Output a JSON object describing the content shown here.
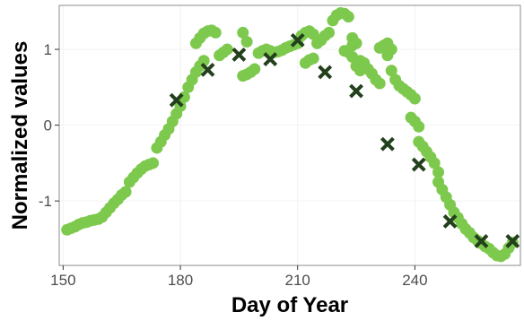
{
  "colors": {
    "dots": "#7dc94e",
    "markers": "#23401c",
    "panel_border": "#8c8c8c",
    "grid": "#f2f2f2"
  },
  "chart_data": {
    "type": "scatter",
    "title": "",
    "xlabel": "Day of Year",
    "ylabel": "Normalized values",
    "xlim": [
      149,
      267
    ],
    "ylim": [
      -1.85,
      1.58
    ],
    "x_ticks": [
      150,
      180,
      210,
      240
    ],
    "y_ticks": [
      -1,
      0,
      1
    ],
    "x_tick_labels": [
      "150",
      "180",
      "210",
      "240"
    ],
    "y_tick_labels": [
      "-1",
      "0",
      "1"
    ],
    "grid": false,
    "legend": "none",
    "series": [
      {
        "marker": "circle",
        "color": "#7dc94e",
        "points": [
          [
            151,
            -1.38
          ],
          [
            152,
            -1.36
          ],
          [
            153,
            -1.34
          ],
          [
            154,
            -1.31
          ],
          [
            155,
            -1.29
          ],
          [
            156,
            -1.28
          ],
          [
            157,
            -1.26
          ],
          [
            158,
            -1.25
          ],
          [
            159,
            -1.24
          ],
          [
            160,
            -1.21
          ],
          [
            161,
            -1.15
          ],
          [
            162,
            -1.09
          ],
          [
            163,
            -1.03
          ],
          [
            164,
            -0.98
          ],
          [
            165,
            -0.92
          ],
          [
            166,
            -0.88
          ],
          [
            167,
            -0.75
          ],
          [
            168,
            -0.69
          ],
          [
            169,
            -0.63
          ],
          [
            170,
            -0.58
          ],
          [
            171,
            -0.54
          ],
          [
            172,
            -0.52
          ],
          [
            173,
            -0.5
          ],
          [
            174,
            -0.3
          ],
          [
            175,
            -0.22
          ],
          [
            176,
            -0.13
          ],
          [
            177,
            -0.05
          ],
          [
            178,
            0.05
          ],
          [
            179,
            0.15
          ],
          [
            180,
            0.25
          ],
          [
            181,
            0.37
          ],
          [
            182,
            0.5
          ],
          [
            183,
            0.6
          ],
          [
            184,
            0.7
          ],
          [
            185,
            0.78
          ],
          [
            186,
            0.85
          ],
          [
            184,
            1.08
          ],
          [
            185,
            1.15
          ],
          [
            186,
            1.21
          ],
          [
            187,
            1.24
          ],
          [
            188,
            1.25
          ],
          [
            189,
            1.22
          ],
          [
            190,
            0.92
          ],
          [
            191,
            0.96
          ],
          [
            192,
            1.0
          ],
          [
            196,
            0.65
          ],
          [
            197,
            0.67
          ],
          [
            198,
            0.7
          ],
          [
            199,
            0.74
          ],
          [
            196,
            1.22
          ],
          [
            197,
            1.1
          ],
          [
            200,
            0.95
          ],
          [
            201,
            0.98
          ],
          [
            202,
            1.0
          ],
          [
            203,
            0.98
          ],
          [
            204,
            0.96
          ],
          [
            205,
            0.97
          ],
          [
            206,
            0.99
          ],
          [
            207,
            1.02
          ],
          [
            208,
            1.04
          ],
          [
            209,
            1.06
          ],
          [
            210,
            1.08
          ],
          [
            211,
            1.18
          ],
          [
            212,
            1.22
          ],
          [
            213,
            1.24
          ],
          [
            214,
            1.2
          ],
          [
            212,
            0.82
          ],
          [
            213,
            0.86
          ],
          [
            214,
            0.88
          ],
          [
            215,
            1.08
          ],
          [
            216,
            1.12
          ],
          [
            217,
            1.18
          ],
          [
            218,
            1.22
          ],
          [
            219,
            1.38
          ],
          [
            220,
            1.45
          ],
          [
            221,
            1.48
          ],
          [
            222,
            1.47
          ],
          [
            223,
            1.43
          ],
          [
            222,
            0.98
          ],
          [
            223,
            0.96
          ],
          [
            224,
            1.05
          ],
          [
            224,
            0.9
          ],
          [
            224,
            1.15
          ],
          [
            225,
            1.08
          ],
          [
            225,
            0.78
          ],
          [
            226,
            0.72
          ],
          [
            226,
            0.85
          ],
          [
            227,
            0.82
          ],
          [
            228,
            0.74
          ],
          [
            229,
            0.68
          ],
          [
            230,
            0.6
          ],
          [
            231,
            0.55
          ],
          [
            231,
            1.02
          ],
          [
            232,
            1.05
          ],
          [
            233,
            1.08
          ],
          [
            234,
            1.0
          ],
          [
            233,
            0.92
          ],
          [
            234,
            0.72
          ],
          [
            235,
            0.6
          ],
          [
            236,
            0.52
          ],
          [
            237,
            0.48
          ],
          [
            238,
            0.44
          ],
          [
            239,
            0.4
          ],
          [
            240,
            0.35
          ],
          [
            239,
            0.1
          ],
          [
            240,
            0.05
          ],
          [
            241,
            -0.02
          ],
          [
            241,
            -0.22
          ],
          [
            242,
            -0.28
          ],
          [
            243,
            -0.35
          ],
          [
            244,
            -0.42
          ],
          [
            245,
            -0.5
          ],
          [
            246,
            -0.62
          ],
          [
            246,
            -0.75
          ],
          [
            247,
            -0.85
          ],
          [
            248,
            -0.95
          ],
          [
            249,
            -1.05
          ],
          [
            250,
            -1.15
          ],
          [
            251,
            -1.22
          ],
          [
            252,
            -1.3
          ],
          [
            253,
            -1.37
          ],
          [
            254,
            -1.42
          ],
          [
            255,
            -1.48
          ],
          [
            256,
            -1.52
          ],
          [
            257,
            -1.56
          ],
          [
            258,
            -1.6
          ],
          [
            259,
            -1.63
          ],
          [
            260,
            -1.68
          ],
          [
            261,
            -1.72
          ],
          [
            262,
            -1.73
          ],
          [
            263,
            -1.7
          ],
          [
            264,
            -1.62
          ],
          [
            265,
            -1.55
          ]
        ]
      },
      {
        "marker": "x",
        "color": "#23401c",
        "points": [
          [
            179,
            0.33
          ],
          [
            187,
            0.73
          ],
          [
            195,
            0.93
          ],
          [
            203,
            0.87
          ],
          [
            210,
            1.12
          ],
          [
            217,
            0.7
          ],
          [
            225,
            0.45
          ],
          [
            233,
            -0.25
          ],
          [
            241,
            -0.52
          ],
          [
            249,
            -1.27
          ],
          [
            257,
            -1.53
          ],
          [
            265,
            -1.53
          ]
        ]
      }
    ]
  }
}
